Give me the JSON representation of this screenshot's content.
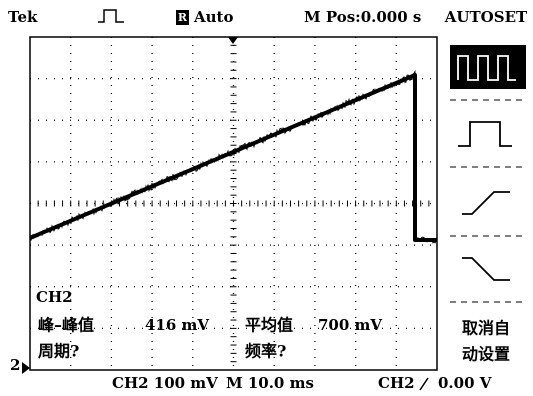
{
  "header": {
    "brand": "Tek",
    "trigger_state_icon": "R",
    "trigger_mode": "Auto",
    "position": "M Pos:0.000 s"
  },
  "side_menu": {
    "title": "AUTOSET",
    "bottom_button": [
      "取消自",
      "动设置"
    ]
  },
  "measurements": {
    "channel": "CH2",
    "items": [
      {
        "label": "峰–峰值",
        "value": "416 mV"
      },
      {
        "label": "平均值",
        "value": "700 mV"
      },
      {
        "label": "周期?"
      },
      {
        "label": "频率?"
      }
    ]
  },
  "footer": {
    "channel_marker": "2",
    "ch_scale": "CH2 100 mV",
    "time_scale": "M 10.0 ms",
    "trigger_source": "CH2",
    "trigger_level": "0.00 V"
  }
}
